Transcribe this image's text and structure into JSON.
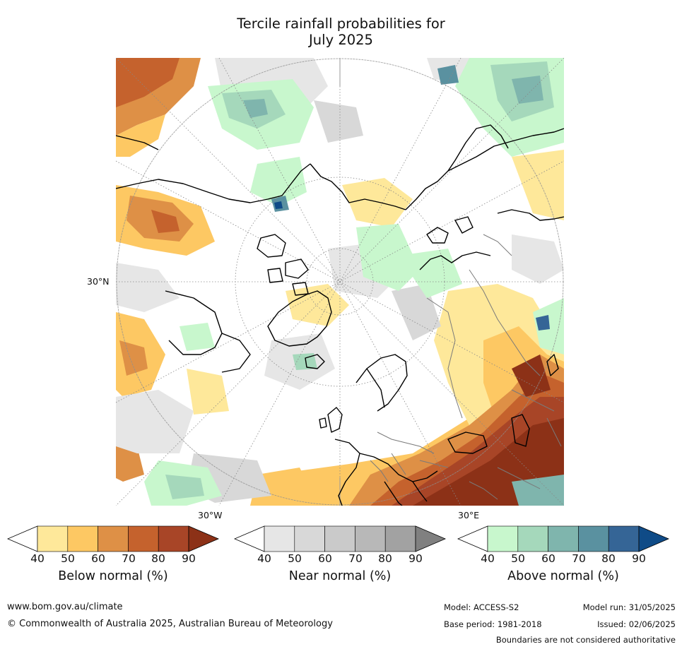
{
  "title": {
    "line1": "Tercile rainfall probabilities for",
    "line2": "July 2025"
  },
  "map": {
    "lat_label": "30°N",
    "lon_label_left": "30°W",
    "lon_label_right": "30°E"
  },
  "colorbars": [
    {
      "id": "below",
      "label": "Below normal (%)",
      "ticks": [
        "40",
        "50",
        "60",
        "70",
        "80",
        "90"
      ],
      "colors": [
        "#ffffff",
        "#fee89a",
        "#fdc863",
        "#de9046",
        "#c5622d",
        "#a84527",
        "#8c3117"
      ]
    },
    {
      "id": "near",
      "label": "Near normal (%)",
      "ticks": [
        "40",
        "50",
        "60",
        "70",
        "80",
        "90"
      ],
      "colors": [
        "#ffffff",
        "#e6e6e6",
        "#d8d8d8",
        "#cacaca",
        "#b8b8b8",
        "#a2a2a2",
        "#808080"
      ]
    },
    {
      "id": "above",
      "label": "Above normal (%)",
      "ticks": [
        "40",
        "50",
        "60",
        "70",
        "80",
        "90"
      ],
      "colors": [
        "#ffffff",
        "#c8f7cd",
        "#a5d8bb",
        "#7fb5ad",
        "#5a91a0",
        "#356596",
        "#0f4b87"
      ]
    }
  ],
  "footer": {
    "url": "www.bom.gov.au/climate",
    "copyright": "© Commonwealth of Australia 2025, Australian Bureau of Meteorology",
    "model": "Model: ACCESS-S2",
    "base_period": "Base period: 1981-2018",
    "model_run": "Model run: 31/05/2025",
    "issued": "Issued: 02/06/2025",
    "disclaimer": "Boundaries are not considered authoritative"
  }
}
